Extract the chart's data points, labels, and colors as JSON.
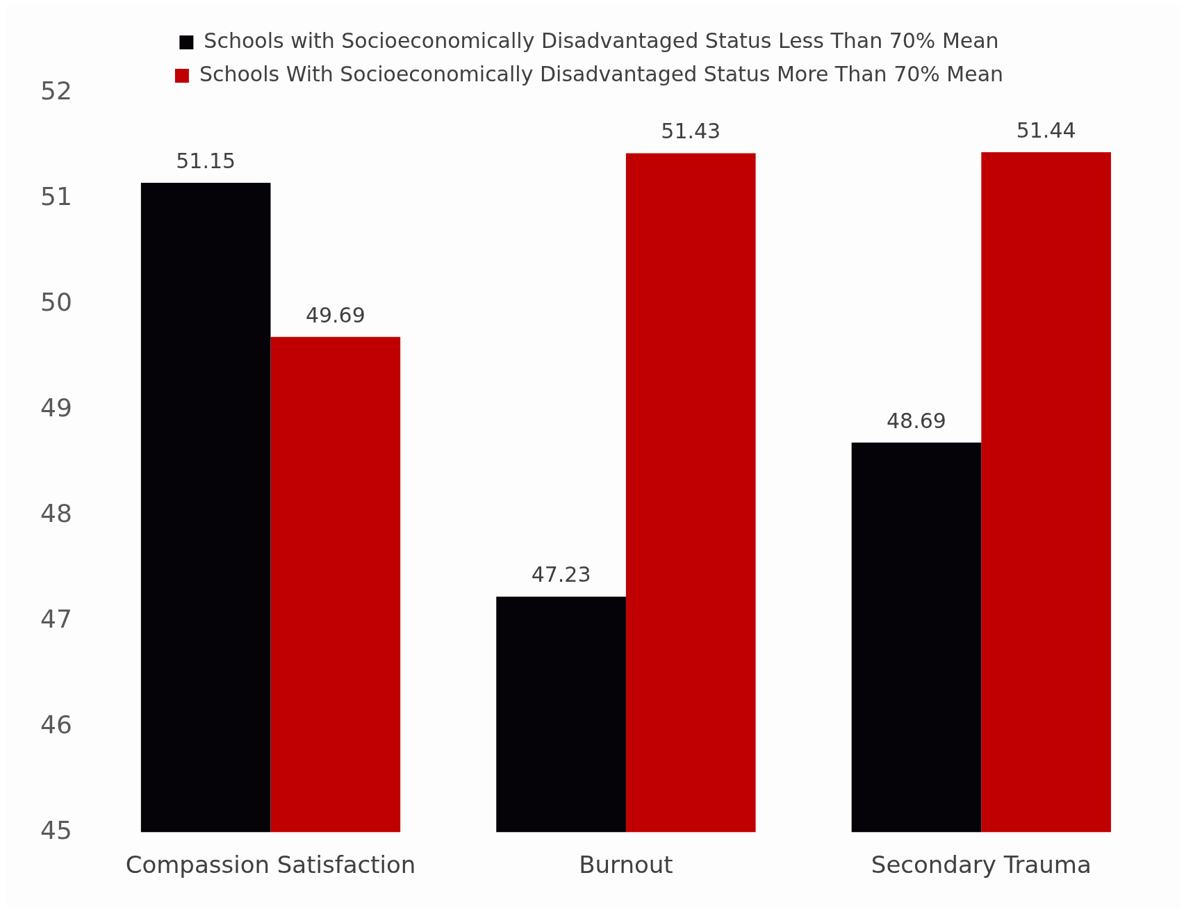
{
  "chart_data": {
    "type": "bar",
    "categories": [
      "Compassion Satisfaction",
      "Burnout",
      "Secondary Trauma"
    ],
    "series": [
      {
        "name": "Schools with Socioeconomically Disadvantaged Status Less Than 70% Mean",
        "color": "#050308",
        "values": [
          51.15,
          47.23,
          48.69
        ]
      },
      {
        "name": "Schools With Socioeconomically Disadvantaged Status More Than 70% Mean",
        "color": "#c00000",
        "values": [
          49.69,
          51.43,
          51.44
        ]
      }
    ],
    "ylim": [
      45,
      52
    ],
    "yticks": [
      45,
      46,
      47,
      48,
      49,
      50,
      51,
      52
    ],
    "grid": false,
    "legend": "top",
    "data_labels": true
  }
}
